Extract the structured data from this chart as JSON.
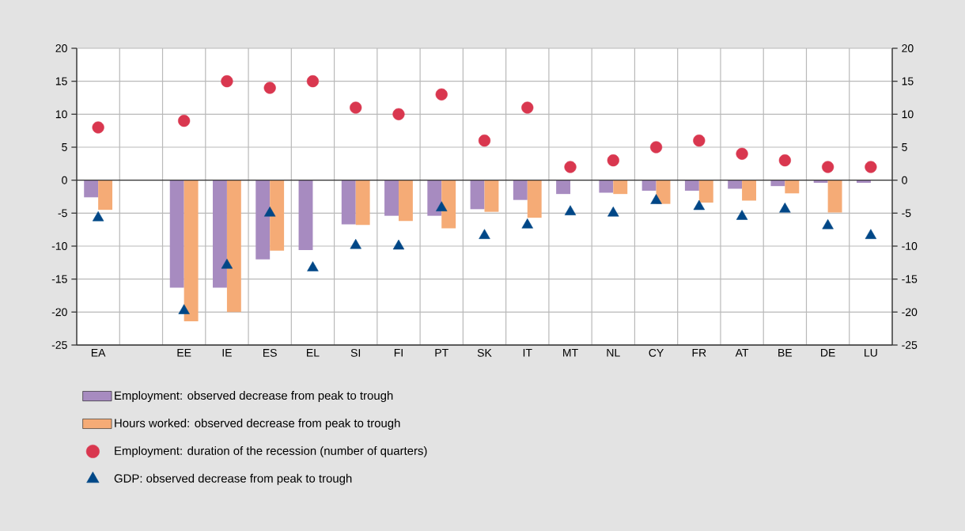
{
  "chart_data": {
    "type": "bar",
    "categories": [
      "EA",
      null,
      "EE",
      "IE",
      "ES",
      "EL",
      "SI",
      "FI",
      "PT",
      "SK",
      "IT",
      "MT",
      "NL",
      "CY",
      "FR",
      "AT",
      "BE",
      "DE",
      "LU"
    ],
    "series": [
      {
        "name": "Employment: observed decrease from peak to trough",
        "color": "#a78bc0",
        "values": [
          -2.6,
          null,
          -16.3,
          -16.3,
          -12.0,
          -10.6,
          -6.7,
          -5.4,
          -5.4,
          -4.4,
          -3.0,
          -2.1,
          -1.9,
          -1.6,
          -1.6,
          -1.3,
          -0.9,
          -0.4,
          -0.4
        ]
      },
      {
        "name": "Hours worked: observed decrease from peak to trough",
        "color": "#f5ab76",
        "values": [
          -4.5,
          null,
          -21.4,
          -20.0,
          -10.7,
          null,
          -6.8,
          -6.2,
          -7.3,
          -4.8,
          -5.7,
          null,
          -2.1,
          -3.6,
          -3.4,
          -3.1,
          -2.0,
          -4.9,
          null
        ]
      },
      {
        "name": "Employment: duration of the recession (number of quarters)",
        "color": "#d9374f",
        "type": "scatter",
        "marker": "circle",
        "values": [
          8,
          null,
          9,
          15,
          14,
          15,
          11,
          10,
          13,
          6,
          11,
          2,
          3,
          5,
          6,
          4,
          3,
          2,
          2
        ]
      },
      {
        "name": "GDP: observed decrease from peak to trough",
        "color": "#004787",
        "type": "scatter",
        "marker": "triangle",
        "values": [
          -5.7,
          null,
          -19.8,
          -12.9,
          -5.0,
          -13.3,
          -9.9,
          -10.0,
          -4.2,
          -8.4,
          -6.8,
          -4.8,
          -5.0,
          -3.1,
          -4.0,
          -5.5,
          -4.4,
          -6.9,
          -8.4
        ]
      }
    ],
    "ylim": [
      -25,
      20
    ],
    "yticks": [
      -25,
      -20,
      -15,
      -10,
      -5,
      0,
      5,
      10,
      15,
      20
    ],
    "y2lim": [
      -25,
      20
    ],
    "y2ticks": [
      -25,
      -20,
      -15,
      -10,
      -5,
      0,
      5,
      10,
      15,
      20
    ],
    "grid": true,
    "legend": "bottom"
  }
}
